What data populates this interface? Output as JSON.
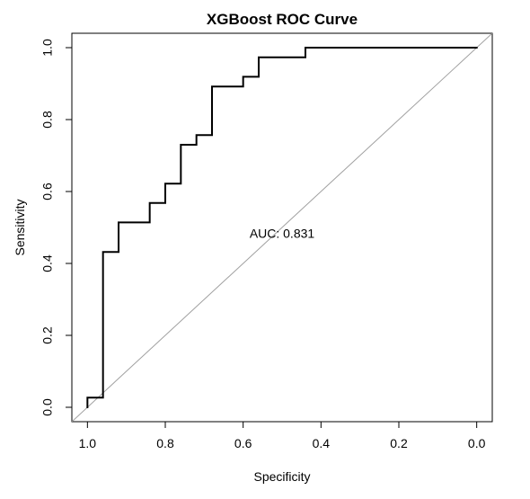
{
  "chart_data": {
    "type": "line",
    "title": "XGBoost ROC Curve",
    "xlabel": "Specificity",
    "ylabel": "Sensitivity",
    "x_reversed": true,
    "xlim": [
      1.04,
      -0.04
    ],
    "ylim": [
      -0.04,
      1.04
    ],
    "grid": false,
    "legend": "none",
    "x_ticks": [
      1.0,
      0.8,
      0.6,
      0.4,
      0.2,
      0.0
    ],
    "x_tick_labels": [
      "1.0",
      "0.8",
      "0.6",
      "0.4",
      "0.2",
      "0.0"
    ],
    "y_ticks": [
      0.0,
      0.2,
      0.4,
      0.6,
      0.8,
      1.0
    ],
    "y_tick_labels": [
      "0.0",
      "0.2",
      "0.4",
      "0.6",
      "0.8",
      "1.0"
    ],
    "annotation": {
      "text": "AUC: 0.831",
      "x": 0.5,
      "y": 0.48
    },
    "reference_line": {
      "description": "diagonal",
      "color": "#a0a0a0"
    },
    "series": [
      {
        "color": "#000000",
        "points": [
          {
            "x": 1.0,
            "y": 0.0
          },
          {
            "x": 1.0,
            "y": 0.027
          },
          {
            "x": 0.96,
            "y": 0.027
          },
          {
            "x": 0.96,
            "y": 0.432
          },
          {
            "x": 0.92,
            "y": 0.432
          },
          {
            "x": 0.92,
            "y": 0.514
          },
          {
            "x": 0.84,
            "y": 0.514
          },
          {
            "x": 0.84,
            "y": 0.568
          },
          {
            "x": 0.8,
            "y": 0.568
          },
          {
            "x": 0.8,
            "y": 0.622
          },
          {
            "x": 0.76,
            "y": 0.622
          },
          {
            "x": 0.76,
            "y": 0.73
          },
          {
            "x": 0.72,
            "y": 0.73
          },
          {
            "x": 0.72,
            "y": 0.757
          },
          {
            "x": 0.68,
            "y": 0.757
          },
          {
            "x": 0.68,
            "y": 0.892
          },
          {
            "x": 0.6,
            "y": 0.892
          },
          {
            "x": 0.6,
            "y": 0.919
          },
          {
            "x": 0.56,
            "y": 0.919
          },
          {
            "x": 0.56,
            "y": 0.973
          },
          {
            "x": 0.44,
            "y": 0.973
          },
          {
            "x": 0.44,
            "y": 1.0
          },
          {
            "x": 0.0,
            "y": 1.0
          }
        ]
      }
    ]
  }
}
